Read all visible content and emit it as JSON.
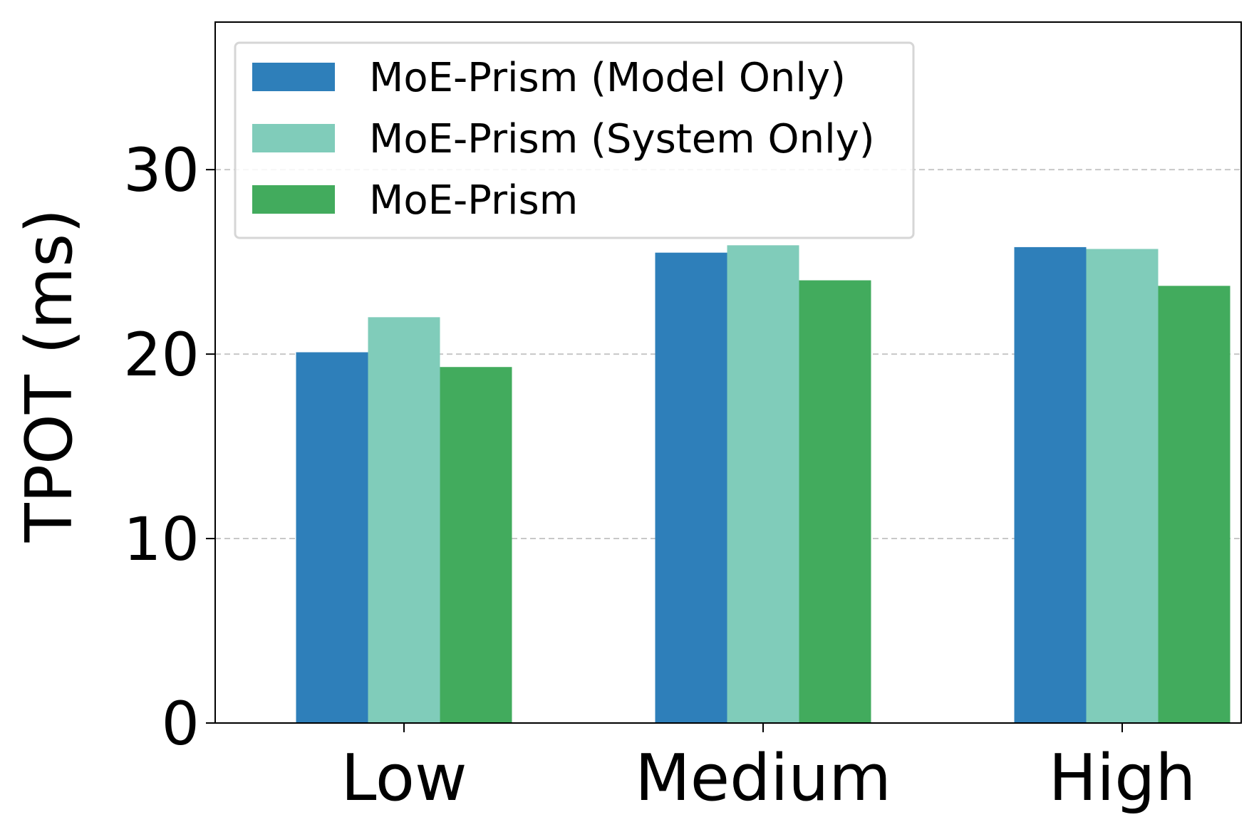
{
  "chart_data": {
    "type": "bar",
    "title": "",
    "xlabel": "",
    "ylabel": "TPOT (ms)",
    "categories": [
      "Low",
      "Medium",
      "High"
    ],
    "series": [
      {
        "name": "MoE-Prism (Model Only)",
        "color": "#2e7fba",
        "values": [
          20.1,
          25.5,
          25.8
        ]
      },
      {
        "name": "MoE-Prism (System Only)",
        "color": "#80ccba",
        "values": [
          22.0,
          25.9,
          25.7
        ]
      },
      {
        "name": "MoE-Prism",
        "color": "#42ab5d",
        "values": [
          19.3,
          24.0,
          23.7
        ]
      }
    ],
    "ylim": [
      0,
      38
    ],
    "yticks": [
      0,
      10,
      20,
      30
    ],
    "grid": "y-dashed",
    "legend_position": "top-left"
  }
}
